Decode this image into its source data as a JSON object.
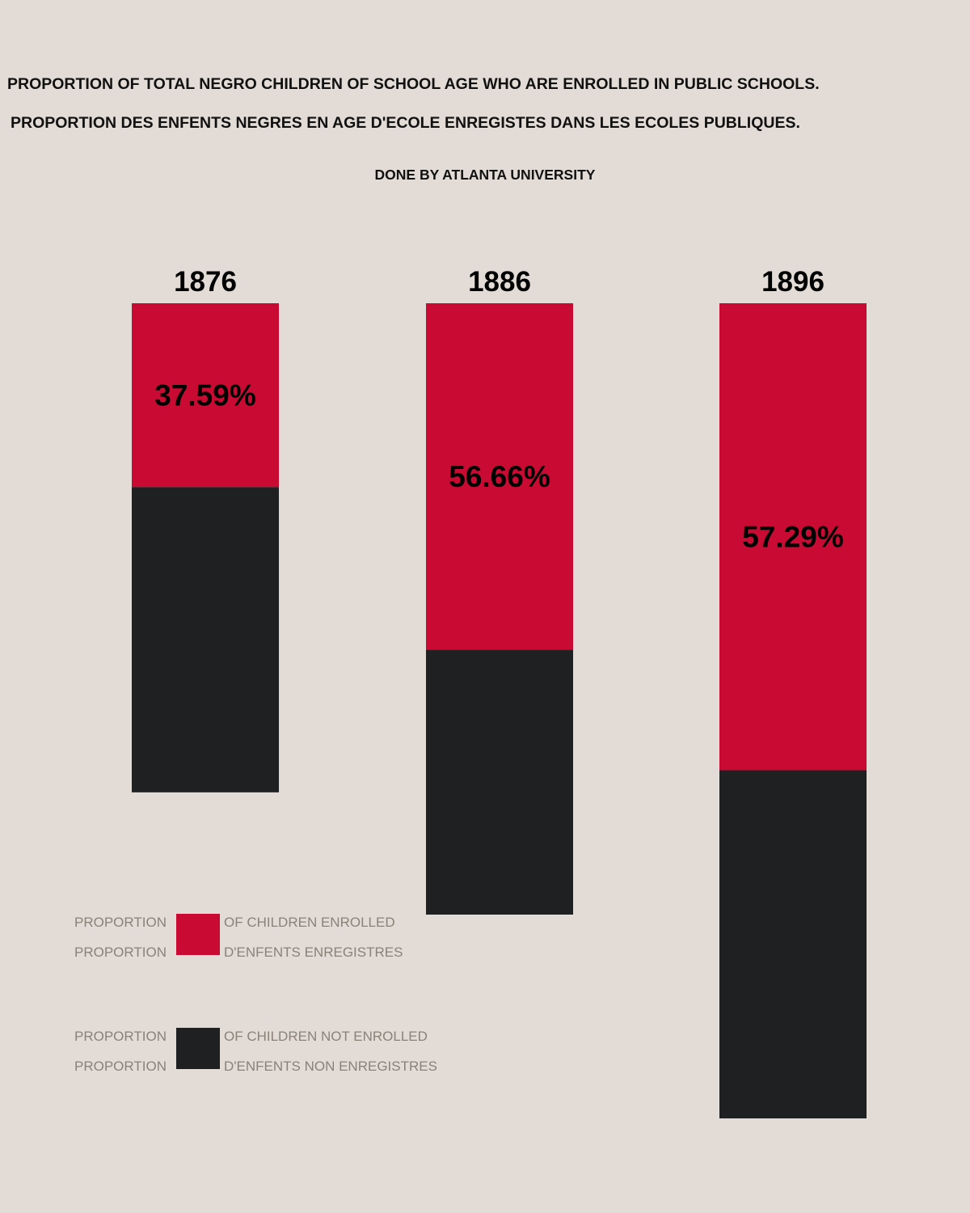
{
  "title": "PROPORTION OF TOTAL NEGRO CHILDREN OF SCHOOL AGE WHO ARE ENROLLED IN PUBLIC SCHOOLS.",
  "title_fr": "PROPORTION DES ENFENTS NEGRES EN AGE D'ECOLE ENREGISTES DANS LES ECOLES PUBLIQUES.",
  "credit": "DONE BY ATLANTA UNIVERSITY",
  "colors": {
    "background": "#e3dcd6",
    "enrolled": "#c90b33",
    "not_enrolled": "#1e2021",
    "legend_text": "#8a8179"
  },
  "legend": [
    {
      "series": "enrolled",
      "left_top": "PROPORTION",
      "left_bottom": "PROPORTION",
      "right_top": "OF CHILDREN ENROLLED",
      "right_bottom": "D'ENFENTS ENREGISTRES"
    },
    {
      "series": "not_enrolled",
      "left_top": "PROPORTION",
      "left_bottom": "PROPORTION",
      "right_top": "OF CHILDREN NOT ENROLLED",
      "right_bottom": "D'ENFENTS NON ENREGISTRES"
    }
  ],
  "chart_data": {
    "type": "bar",
    "stacked": true,
    "categories": [
      "1876",
      "1886",
      "1896"
    ],
    "series": [
      {
        "values": [
          37.59,
          56.66,
          57.29
        ],
        "labels": [
          "37.59%",
          "56.66%",
          "57.29%"
        ]
      },
      {
        "values": [
          62.41,
          43.34,
          42.71
        ]
      }
    ],
    "relative_bar_heights": [
      0.6,
      0.75,
      1.0
    ],
    "legend_placement": "bottom-left"
  }
}
